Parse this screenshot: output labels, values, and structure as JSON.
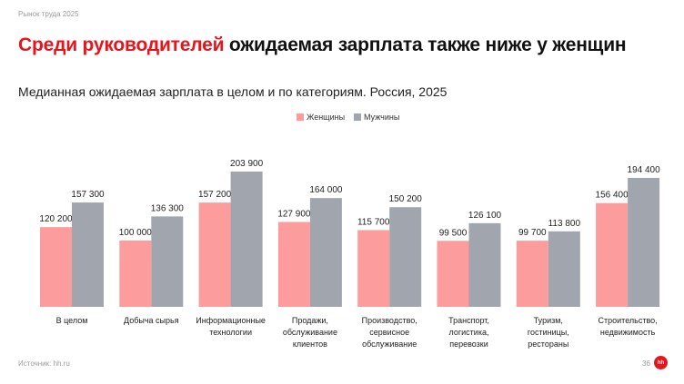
{
  "header": {
    "kicker": "Рынок труда 2025",
    "title_accent": "Среди руководителей",
    "title_rest": "ожидаемая зарплата также ниже у женщин",
    "subtitle": "Медианная ожидаемая зарплата в целом и по категориям. Россия, 2025"
  },
  "footer": {
    "source": "Источник: hh.ru",
    "page": "36",
    "logo_text": "hh"
  },
  "colors": {
    "women": "#fc9c9c",
    "men": "#a1a5ae",
    "accent": "#e8141c"
  },
  "chart_data": {
    "type": "bar",
    "categories": [
      [
        "В целом"
      ],
      [
        "Добыча сырья"
      ],
      [
        "Информационные",
        "технологии"
      ],
      [
        "Продажи,",
        "обслуживание",
        "клиентов"
      ],
      [
        "Производство,",
        "сервисное",
        "обслуживание"
      ],
      [
        "Транспорт,",
        "логистика,",
        "перевозки"
      ],
      [
        "Туризм,",
        "гостиницы,",
        "рестораны"
      ],
      [
        "Строительство,",
        "недвижимость"
      ]
    ],
    "series": [
      {
        "name": "Женщины",
        "color": "#fc9c9c",
        "values": [
          120200,
          100000,
          157200,
          127900,
          115700,
          99500,
          99700,
          156400
        ],
        "labels": [
          "120 200",
          "100 000",
          "157 200",
          "127 900",
          "115 700",
          "99 500",
          "99 700",
          "156 400"
        ]
      },
      {
        "name": "Мужчины",
        "color": "#a1a5ae",
        "values": [
          157300,
          136300,
          203900,
          164000,
          150200,
          126100,
          113800,
          194400
        ],
        "labels": [
          "157 300",
          "136 300",
          "203 900",
          "164 000",
          "150 200",
          "126 100",
          "113 800",
          "194 400"
        ]
      }
    ],
    "ylim": [
      0,
      203900
    ],
    "grid": false,
    "legend_position": "top-center"
  }
}
